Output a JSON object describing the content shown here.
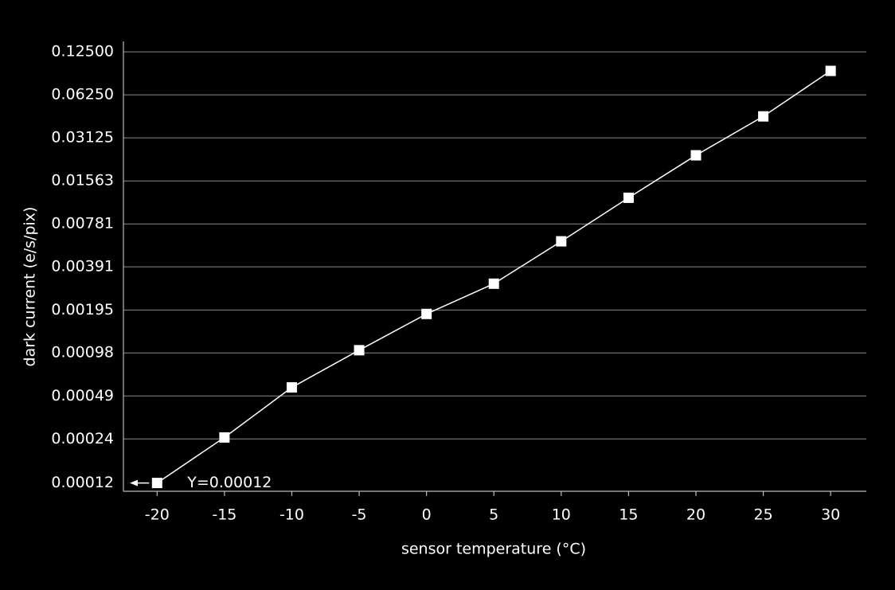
{
  "chart_data": {
    "type": "line",
    "x_label": "sensor temperature (°C)",
    "y_label": "dark current (e/s/pix)",
    "x": [
      -20,
      -15,
      -10,
      -5,
      0,
      5,
      10,
      15,
      20,
      25,
      30
    ],
    "series": [
      {
        "color": "#ffffff",
        "values": [
          0.00012,
          0.00025,
          0.00056,
          0.00102,
          0.00183,
          0.00298,
          0.0059,
          0.0119,
          0.0236,
          0.0442,
          0.092
        ]
      }
    ],
    "annotation": "Y=0.00012",
    "log_y": true,
    "log_base": 2,
    "grid": true,
    "xlim": [
      -22.5,
      32.65
    ],
    "xticks": [
      -20,
      -15,
      -10,
      -5,
      0,
      5,
      10,
      15,
      20,
      25,
      30
    ],
    "ylim": [
      0.000105,
      0.148
    ],
    "yticks": [
      {
        "value": 0.00012,
        "label": "0.00012"
      },
      {
        "value": 0.000244,
        "label": "0.00024"
      },
      {
        "value": 0.000488,
        "label": "0.00049"
      },
      {
        "value": 0.000977,
        "label": "0.00098"
      },
      {
        "value": 0.00195,
        "label": "0.00195"
      },
      {
        "value": 0.00391,
        "label": "0.00391"
      },
      {
        "value": 0.00781,
        "label": "0.00781"
      },
      {
        "value": 0.015625,
        "label": "0.01563"
      },
      {
        "value": 0.03125,
        "label": "0.03125"
      },
      {
        "value": 0.0625,
        "label": "0.06250"
      },
      {
        "value": 0.125,
        "label": "0.12500"
      }
    ]
  }
}
